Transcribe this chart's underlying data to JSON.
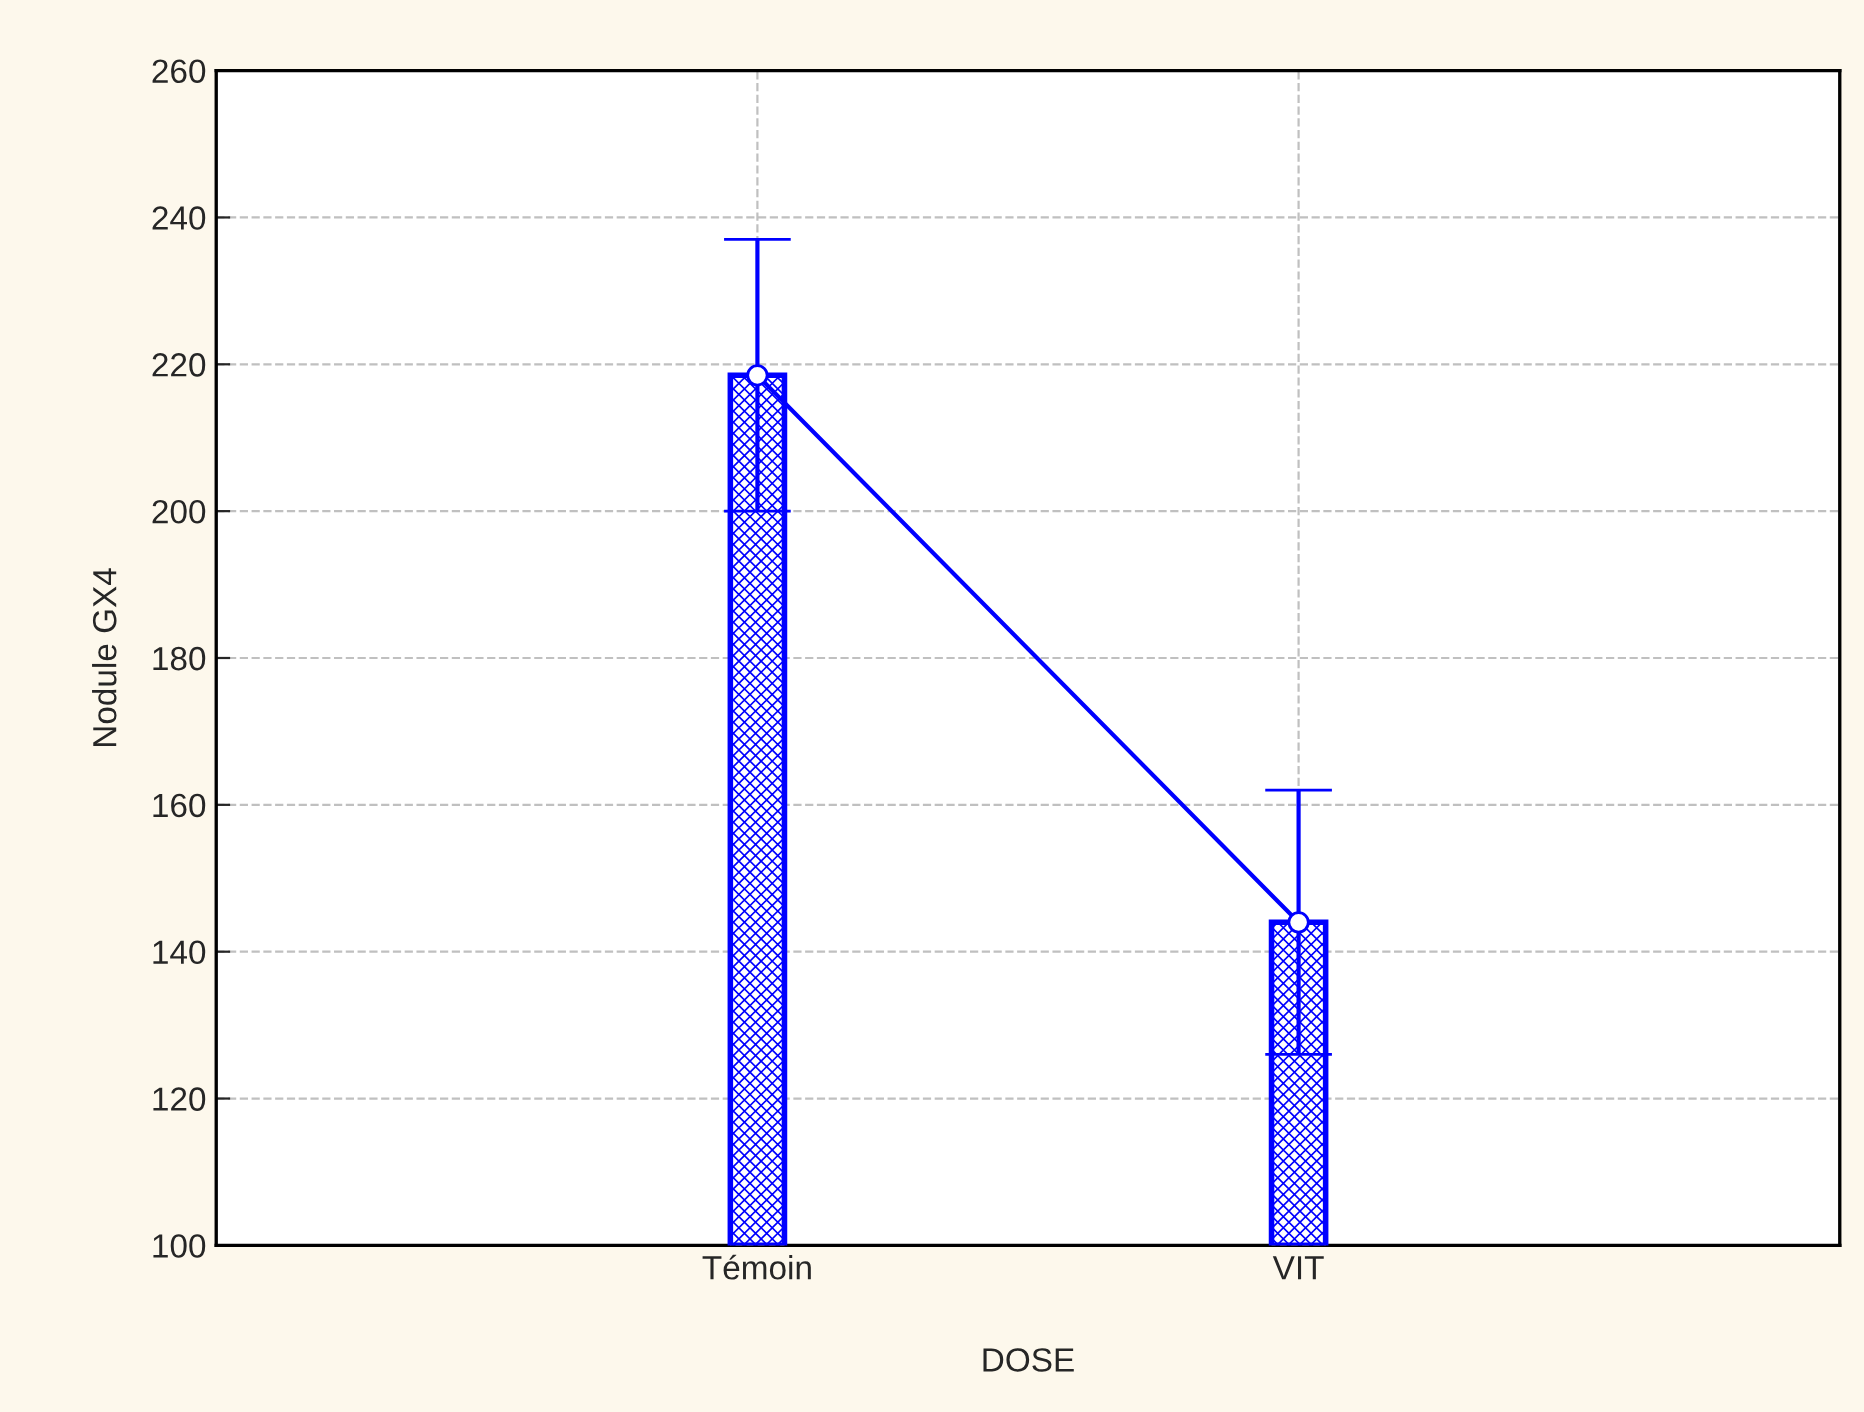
{
  "chart_data": {
    "type": "bar",
    "xlabel": "DOSE",
    "ylabel": "Nodule GX4",
    "categories": [
      "Témoin",
      "VIT"
    ],
    "series": [
      {
        "color": "#0000ff",
        "values": [
          218.5,
          144
        ]
      },
      {
        "type": "line",
        "color": "#0000ff",
        "values": [
          218.5,
          144
        ],
        "errors": [
          18.5,
          18
        ]
      }
    ],
    "ylim": [
      100,
      260
    ],
    "yticks": [
      100,
      120,
      140,
      160,
      180,
      200,
      220,
      240,
      260
    ],
    "grid": true,
    "marker": "circle",
    "line_style": "solid"
  }
}
